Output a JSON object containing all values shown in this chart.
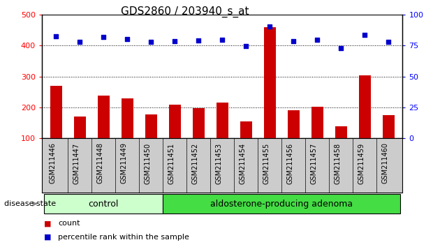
{
  "title": "GDS2860 / 203940_s_at",
  "samples": [
    "GSM211446",
    "GSM211447",
    "GSM211448",
    "GSM211449",
    "GSM211450",
    "GSM211451",
    "GSM211452",
    "GSM211453",
    "GSM211454",
    "GSM211455",
    "GSM211456",
    "GSM211457",
    "GSM211458",
    "GSM211459",
    "GSM211460"
  ],
  "counts": [
    270,
    170,
    238,
    230,
    178,
    208,
    197,
    215,
    155,
    460,
    190,
    202,
    138,
    305,
    175
  ],
  "percentiles_left_scale": [
    430,
    412,
    428,
    422,
    413,
    415,
    418,
    420,
    398,
    462,
    415,
    420,
    392,
    435,
    412
  ],
  "group_labels": [
    "control",
    "aldosterone-producing adenoma"
  ],
  "control_count": 5,
  "bar_color": "#cc0000",
  "dot_color": "#0000cc",
  "ylim_left": [
    100,
    500
  ],
  "ylim_right": [
    0,
    100
  ],
  "yticks_left": [
    100,
    200,
    300,
    400,
    500
  ],
  "yticks_right": [
    0,
    25,
    50,
    75,
    100
  ],
  "grid_values": [
    200,
    300,
    400
  ],
  "background_color": "#ffffff",
  "label_area_color": "#cccccc",
  "control_color": "#ccffcc",
  "adenoma_color": "#44dd44",
  "disease_state_label": "disease state",
  "legend_count_label": "count",
  "legend_percentile_label": "percentile rank within the sample",
  "title_fontsize": 11,
  "tick_fontsize": 8,
  "label_fontsize": 7,
  "group_fontsize": 9
}
